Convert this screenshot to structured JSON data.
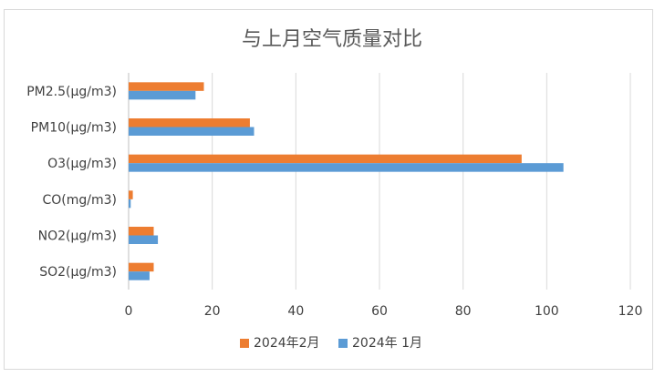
{
  "chart_data": {
    "type": "bar",
    "orientation": "horizontal",
    "title": "与上月空气质量对比",
    "categories": [
      "PM2.5(μg/m3)",
      "PM10(μg/m3)",
      "O3(μg/m3)",
      "CO(mg/m3)",
      "NO2(μg/m3)",
      "SO2(μg/m3)"
    ],
    "series": [
      {
        "name": "2024年2月",
        "color": "#ED7D31",
        "values": [
          18,
          29,
          94,
          1,
          6,
          6
        ]
      },
      {
        "name": "2024年 1月",
        "color": "#5B9BD5",
        "values": [
          16,
          30,
          104,
          0.5,
          7,
          5
        ]
      }
    ],
    "xlim": [
      0,
      120
    ],
    "xticks": [
      0,
      20,
      40,
      60,
      80,
      100,
      120
    ],
    "grid": true,
    "legend": "bottom"
  }
}
